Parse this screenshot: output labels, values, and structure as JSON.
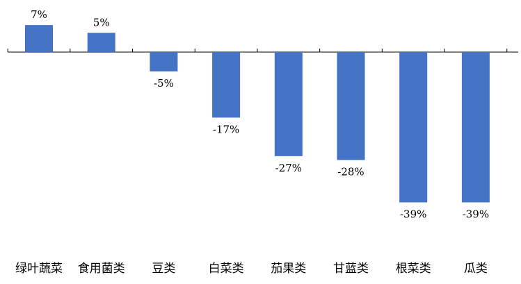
{
  "chart_data": {
    "type": "bar",
    "title": "",
    "xlabel": "",
    "ylabel": "",
    "categories": [
      "绿叶蔬菜",
      "食用菌类",
      "豆类",
      "白菜类",
      "茄果类",
      "甘蓝类",
      "根菜类",
      "瓜类"
    ],
    "values": [
      7,
      5,
      -5,
      -17,
      -27,
      -28,
      -39,
      -39
    ],
    "data_labels": [
      "7%",
      "5%",
      "-5%",
      "-17%",
      "-27%",
      "-28%",
      "-39%",
      "-39%"
    ],
    "unit": "%",
    "ylim": [
      -40,
      8
    ],
    "grid": false,
    "legend": "none",
    "bar_color": "#4472C4",
    "axis_color": "#000000"
  }
}
